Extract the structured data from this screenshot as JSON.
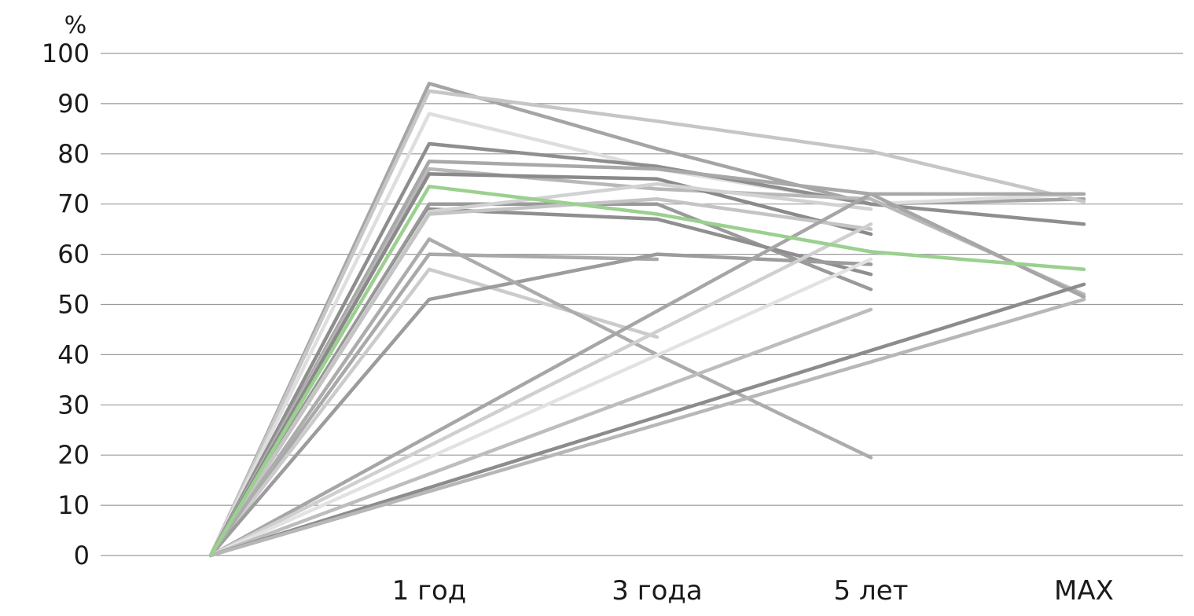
{
  "chart_data": {
    "type": "line",
    "title": "",
    "xlabel": "",
    "ylabel": "%",
    "categories": [
      "",
      "1 год",
      "3 года",
      "5 лет",
      "MAX"
    ],
    "ylim": [
      0,
      100
    ],
    "yticks": [
      0,
      10,
      20,
      30,
      40,
      50,
      60,
      70,
      80,
      90,
      100
    ],
    "grid": "horizontal",
    "legend": "none",
    "highlight_color": "#9bd08f",
    "series": [
      {
        "values": [
          0,
          94,
          81,
          70,
          71
        ],
        "color": "#a5a5a5"
      },
      {
        "values": [
          0,
          92.5,
          86.5,
          80.5,
          70.5
        ],
        "color": "#c6c6c6"
      },
      {
        "values": [
          0,
          88,
          77,
          70,
          72
        ],
        "color": "#dedede"
      },
      {
        "values": [
          0,
          82,
          77.5,
          70,
          66
        ],
        "color": "#8e8e8e"
      },
      {
        "values": [
          0,
          78.5,
          77,
          72,
          72
        ],
        "color": "#a8a8a8"
      },
      {
        "values": [
          0,
          77,
          73,
          71,
          52
        ],
        "color": "#b8b8b8"
      },
      {
        "values": [
          0,
          76,
          75,
          64,
          null
        ],
        "color": "#8a8a8a"
      },
      {
        "values": [
          0,
          70,
          70,
          53,
          null
        ],
        "color": "#9a9a9a"
      },
      {
        "values": [
          0,
          69,
          67,
          56,
          null
        ],
        "color": "#8f8f8f"
      },
      {
        "values": [
          0,
          68.5,
          74,
          69,
          null
        ],
        "color": "#d2d2d2"
      },
      {
        "values": [
          0,
          68,
          71,
          65,
          null
        ],
        "color": "#c4c4c4"
      },
      {
        "values": [
          0,
          60,
          59,
          null,
          null
        ],
        "color": "#a9a9a9"
      },
      {
        "values": [
          0,
          57,
          43.5,
          null,
          null
        ],
        "color": "#cbcbcb"
      },
      {
        "values": [
          0,
          51,
          60,
          58,
          null
        ],
        "color": "#9c9c9c"
      },
      {
        "values": [
          0,
          63,
          40,
          19.5,
          null
        ],
        "color": "#acacac"
      },
      {
        "values": [
          0,
          null,
          null,
          72,
          51.5
        ],
        "color": "#a6a6a6"
      },
      {
        "values": [
          0,
          null,
          null,
          66,
          null
        ],
        "color": "#cfcfcf"
      },
      {
        "values": [
          0,
          null,
          null,
          59,
          null
        ],
        "color": "#e2e2e2"
      },
      {
        "values": [
          0,
          null,
          null,
          49,
          null
        ],
        "color": "#bdbdbd"
      },
      {
        "values": [
          0,
          null,
          null,
          null,
          54
        ],
        "color": "#8c8c8c"
      },
      {
        "values": [
          0,
          null,
          null,
          null,
          51
        ],
        "color": "#b7b7b7"
      },
      {
        "values": [
          0,
          73.5,
          68,
          60.5,
          57
        ],
        "color": "#9bd08f"
      }
    ]
  }
}
